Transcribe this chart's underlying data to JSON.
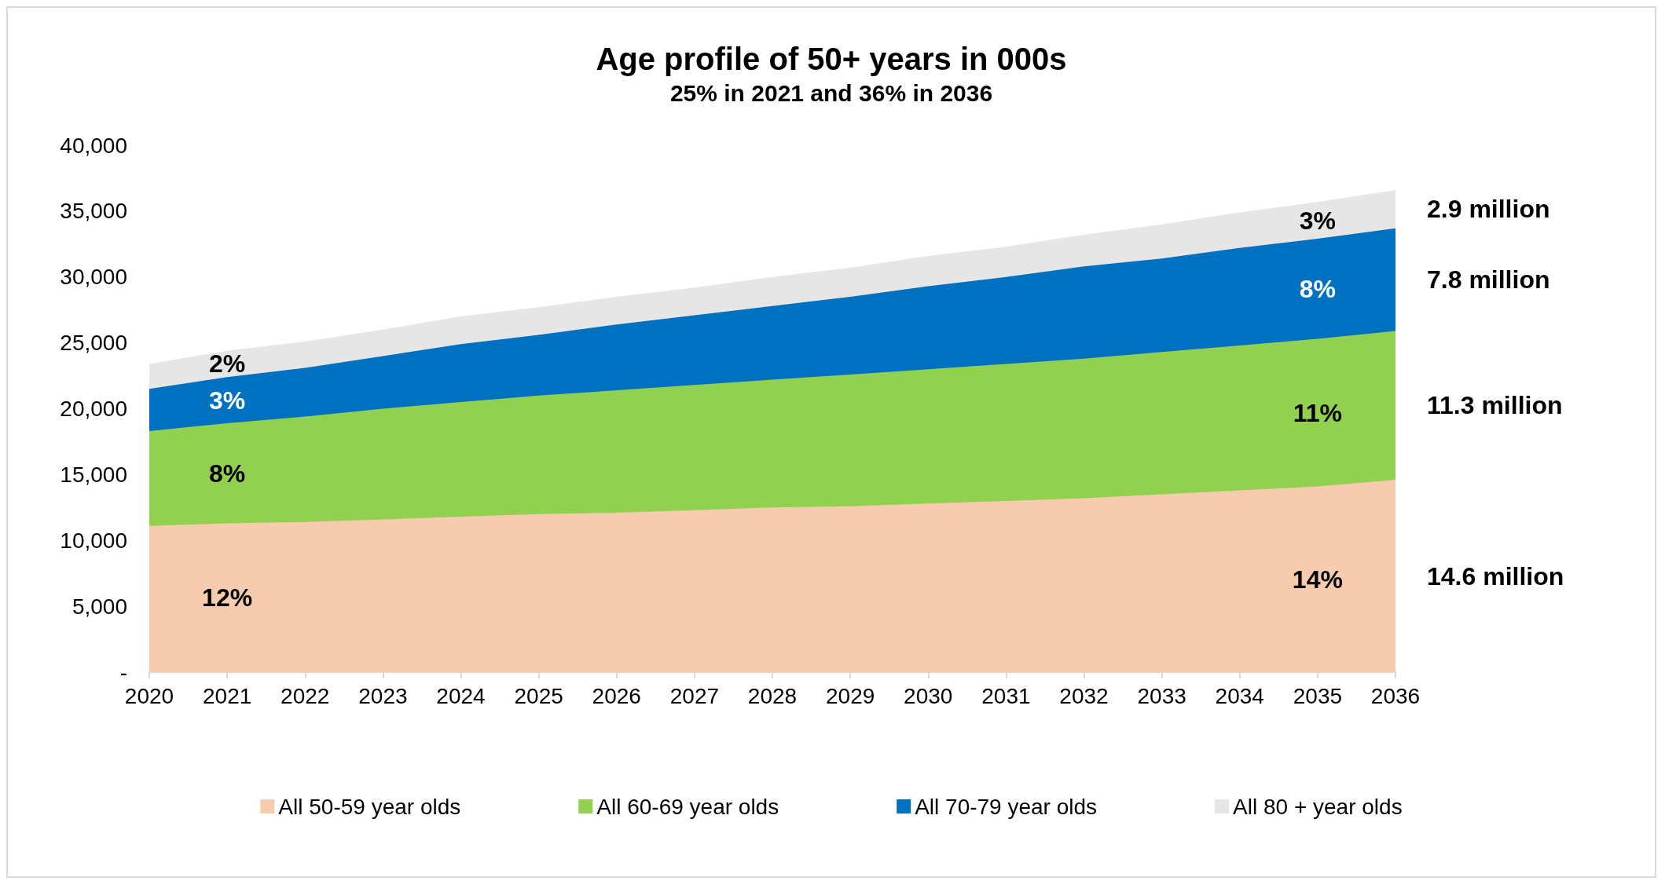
{
  "chart_data": {
    "type": "area",
    "stacked": true,
    "title": "Age profile of 50+ years in 000s",
    "subtitle": "25% in 2021 and 36% in 2036",
    "x": [
      2020,
      2021,
      2022,
      2023,
      2024,
      2025,
      2026,
      2027,
      2028,
      2029,
      2030,
      2031,
      2032,
      2033,
      2034,
      2035,
      2036
    ],
    "xlim": [
      2020,
      2036
    ],
    "xticks": [
      2020,
      2021,
      2022,
      2023,
      2024,
      2025,
      2026,
      2027,
      2028,
      2029,
      2030,
      2031,
      2032,
      2033,
      2034,
      2035,
      2036
    ],
    "ylim": [
      0,
      40000
    ],
    "yticks": [
      {
        "value": 0,
        "label": "-"
      },
      {
        "value": 5000,
        "label": "5,000"
      },
      {
        "value": 10000,
        "label": "10,000"
      },
      {
        "value": 15000,
        "label": "15,000"
      },
      {
        "value": 20000,
        "label": "20,000"
      },
      {
        "value": 25000,
        "label": "25,000"
      },
      {
        "value": 30000,
        "label": "30,000"
      },
      {
        "value": 35000,
        "label": "35,000"
      },
      {
        "value": 40000,
        "label": "40,000"
      }
    ],
    "grid": false,
    "legend": "bottom",
    "series": [
      {
        "name": "All 50-59 year olds",
        "color": "#f7cbad",
        "values": [
          11100,
          11300,
          11400,
          11600,
          11800,
          12000,
          12100,
          12300,
          12500,
          12600,
          12800,
          13000,
          13200,
          13500,
          13800,
          14100,
          14600
        ]
      },
      {
        "name": "All 60-69 year olds",
        "color": "#92d050",
        "values": [
          7200,
          7600,
          8000,
          8400,
          8700,
          9000,
          9300,
          9500,
          9700,
          10000,
          10200,
          10400,
          10600,
          10800,
          11000,
          11200,
          11300
        ]
      },
      {
        "name": "All 70-79 year olds",
        "color": "#0070c0",
        "values": [
          3200,
          3500,
          3700,
          4000,
          4400,
          4600,
          5000,
          5300,
          5600,
          5900,
          6300,
          6600,
          7000,
          7100,
          7400,
          7600,
          7800
        ]
      },
      {
        "name": "All 80 + year olds",
        "color": "#e6e6e6",
        "values": [
          1900,
          2000,
          2000,
          2000,
          2100,
          2100,
          2100,
          2100,
          2200,
          2200,
          2300,
          2300,
          2400,
          2600,
          2700,
          2800,
          2900
        ]
      }
    ],
    "annotations": [
      "2%",
      "3%",
      "8%",
      "12%",
      "3%",
      "8%",
      "11%",
      "14%",
      "2.9 million",
      "7.8 million",
      "11.3 million",
      "14.6 million"
    ]
  }
}
